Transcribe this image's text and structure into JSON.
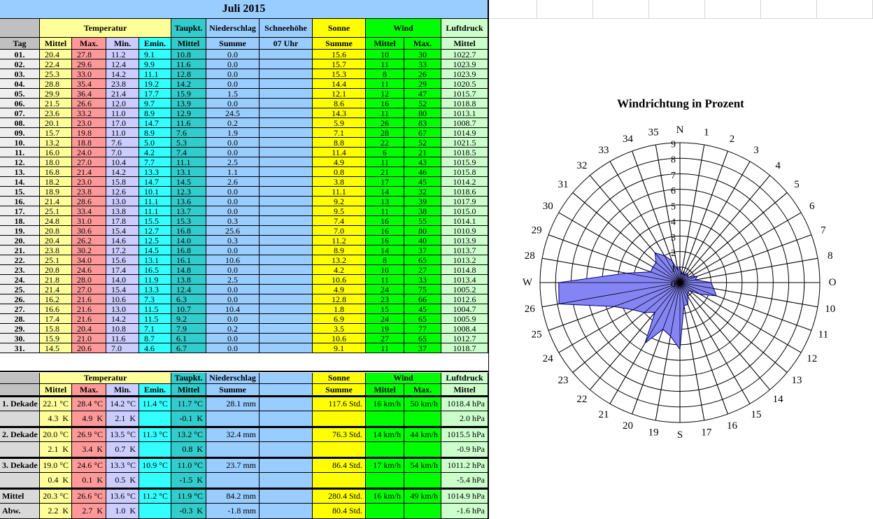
{
  "title": "Juli 2015",
  "table": {
    "group_headers": [
      "Temperatur",
      "Taupkt.",
      "Niederschlag",
      "Schneehöhe",
      "Sonne",
      "Wind",
      "Luftdruck"
    ],
    "sub_headers": [
      "Tag",
      "Mittel",
      "Max.",
      "Min.",
      "Emin.",
      "Mittel",
      "Summe",
      "07 Uhr",
      "Summe",
      "Mittel",
      "Max.",
      "Mittel"
    ],
    "rows": [
      [
        "01.",
        "20.4",
        "27.8",
        "11.2",
        "9.1",
        "10.8",
        "0.0",
        "15.6",
        "10",
        "30",
        "1022.7"
      ],
      [
        "02.",
        "22.4",
        "29.6",
        "12.4",
        "9.9",
        "11.6",
        "0.0",
        "15.7",
        "11",
        "33",
        "1023.9"
      ],
      [
        "03.",
        "25.3",
        "33.0",
        "14.2",
        "11.1",
        "12.8",
        "0.0",
        "15.3",
        "8",
        "26",
        "1023.9"
      ],
      [
        "04.",
        "28.8",
        "35.4",
        "23.8",
        "19.2",
        "14.2",
        "0.0",
        "14.4",
        "11",
        "29",
        "1020.5"
      ],
      [
        "05.",
        "29.9",
        "36.4",
        "21.4",
        "17.7",
        "15.9",
        "1.5",
        "12.1",
        "12",
        "47",
        "1015.7"
      ],
      [
        "06.",
        "21.5",
        "26.6",
        "12.0",
        "9.7",
        "13.9",
        "0.0",
        "8.6",
        "16",
        "52",
        "1018.8"
      ],
      [
        "07.",
        "23.6",
        "33.2",
        "11.0",
        "8.9",
        "12.9",
        "24.5",
        "14.3",
        "11",
        "80",
        "1013.1"
      ],
      [
        "08.",
        "20.1",
        "23.0",
        "17.0",
        "14.7",
        "11.6",
        "0.2",
        "5.9",
        "26",
        "83",
        "1008.7"
      ],
      [
        "09.",
        "15.7",
        "19.8",
        "11.0",
        "8.9",
        "7.6",
        "1.9",
        "7.1",
        "28",
        "67",
        "1014.9"
      ],
      [
        "10.",
        "13.2",
        "18.8",
        "7.6",
        "5.0",
        "5.3",
        "0.0",
        "8.8",
        "22",
        "52",
        "1021.5"
      ],
      [
        "11.",
        "16.0",
        "24.0",
        "7.0",
        "4.2",
        "7.4",
        "0.0",
        "11.4",
        "6",
        "21",
        "1018.5"
      ],
      [
        "12.",
        "18.0",
        "27.0",
        "10.4",
        "7.7",
        "11.1",
        "2.5",
        "4.9",
        "11",
        "43",
        "1015.9"
      ],
      [
        "13.",
        "16.8",
        "21.4",
        "14.2",
        "13.3",
        "13.1",
        "1.1",
        "0.8",
        "21",
        "46",
        "1015.8"
      ],
      [
        "14.",
        "18.2",
        "23.0",
        "15.8",
        "14.7",
        "14.5",
        "2.6",
        "3.8",
        "17",
        "45",
        "1014.2"
      ],
      [
        "15.",
        "18.9",
        "23.8",
        "12.6",
        "10.1",
        "12.3",
        "0.0",
        "11.1",
        "14",
        "32",
        "1018.6"
      ],
      [
        "16.",
        "21.4",
        "28.6",
        "13.0",
        "11.1",
        "13.6",
        "0.0",
        "9.2",
        "13",
        "39",
        "1017.9"
      ],
      [
        "17.",
        "25.1",
        "33.4",
        "13.8",
        "11.1",
        "13.7",
        "0.0",
        "9.5",
        "11",
        "38",
        "1015.0"
      ],
      [
        "18.",
        "24.8",
        "31.0",
        "17.8",
        "15.5",
        "15.3",
        "0.3",
        "7.4",
        "16",
        "55",
        "1014.1"
      ],
      [
        "19.",
        "20.8",
        "30.6",
        "15.4",
        "12.7",
        "16.8",
        "25.6",
        "7.0",
        "16",
        "80",
        "1010.9"
      ],
      [
        "20.",
        "20.4",
        "26.2",
        "14.6",
        "12.5",
        "14.0",
        "0.3",
        "11.2",
        "16",
        "40",
        "1013.9"
      ],
      [
        "21.",
        "23.8",
        "30.2",
        "17.2",
        "14.5",
        "16.8",
        "0.0",
        "8.9",
        "14",
        "37",
        "1013.7"
      ],
      [
        "22.",
        "25.1",
        "34.0",
        "15.6",
        "13.1",
        "16.1",
        "10.6",
        "13.2",
        "8",
        "65",
        "1013.2"
      ],
      [
        "23.",
        "20.8",
        "24.6",
        "17.4",
        "16.5",
        "14.8",
        "0.0",
        "4.2",
        "10",
        "27",
        "1014.8"
      ],
      [
        "24.",
        "21.8",
        "28.0",
        "14.0",
        "11.9",
        "13.8",
        "2.5",
        "10.6",
        "11",
        "33",
        "1013.4"
      ],
      [
        "25.",
        "21.4",
        "27.0",
        "15.4",
        "13.3",
        "12.4",
        "0.0",
        "4.9",
        "24",
        "75",
        "1005.2"
      ],
      [
        "26.",
        "16.2",
        "21.6",
        "10.6",
        "7.3",
        "6.3",
        "0.0",
        "12.8",
        "23",
        "66",
        "1012.6"
      ],
      [
        "27.",
        "16.6",
        "21.6",
        "13.0",
        "11.5",
        "10.7",
        "10.4",
        "1.8",
        "15",
        "45",
        "1004.7"
      ],
      [
        "28.",
        "17.4",
        "21.6",
        "14.2",
        "11.5",
        "9.2",
        "0.0",
        "6.9",
        "24",
        "65",
        "1005.9"
      ],
      [
        "29.",
        "15.8",
        "20.4",
        "10.8",
        "7.1",
        "7.9",
        "0.2",
        "3.5",
        "19",
        "77",
        "1008.4"
      ],
      [
        "30.",
        "15.9",
        "21.0",
        "11.6",
        "8.7",
        "6.1",
        "0.0",
        "10.6",
        "27",
        "65",
        "1012.7"
      ],
      [
        "31.",
        "14.5",
        "20.6",
        "7.0",
        "4.6",
        "6.7",
        "0.0",
        "9.1",
        "11",
        "37",
        "1018.7"
      ]
    ]
  },
  "summary": {
    "group_headers": [
      "Temperatur",
      "Taupkt.",
      "Niederschlag",
      "Sonne",
      "Wind",
      "Luftdruck"
    ],
    "sub_headers": [
      "Mittel",
      "Max.",
      "Min.",
      "Emin.",
      "Mittel",
      "Summe",
      "Summe",
      "Mittel",
      "Max.",
      "Mittel"
    ],
    "rows": [
      {
        "label": "1. Dekade",
        "t_mittel": "22.1 °C",
        "t_max": "28.4 °C",
        "t_min": "14.2 °C",
        "t_emin": "11.4 °C",
        "taupkt": "11.7 °C",
        "nieder": "28.1 mm",
        "sonne": "117.6 Std.",
        "wind_mittel": "16 km/h",
        "wind_max": "50 km/h",
        "luftdruck": "1018.4 hPa"
      },
      {
        "t_mittel": "4.3  K",
        "t_max": "4.9  K",
        "t_min": "2.1  K",
        "taupkt": "-0.1  K",
        "luftdruck": "2.0 hPa"
      },
      {
        "label": "2. Dekade",
        "t_mittel": "20.0 °C",
        "t_max": "26.9 °C",
        "t_min": "13.5 °C",
        "t_emin": "11.3 °C",
        "taupkt": "13.2 °C",
        "nieder": "32.4 mm",
        "sonne": "76.3 Std.",
        "wind_mittel": "14 km/h",
        "wind_max": "44 km/h",
        "luftdruck": "1015.5 hPa"
      },
      {
        "t_mittel": "2.1  K",
        "t_max": "3.4  K",
        "t_min": "0.7  K",
        "taupkt": "0.8  K",
        "luftdruck": "-0.9 hPa"
      },
      {
        "label": "3. Dekade",
        "t_mittel": "19.0 °C",
        "t_max": "24.6 °C",
        "t_min": "13.3 °C",
        "t_emin": "10.9 °C",
        "taupkt": "11.0 °C",
        "nieder": "23.7 mm",
        "sonne": "86.4 Std.",
        "wind_mittel": "17 km/h",
        "wind_max": "54 km/h",
        "luftdruck": "1011.2 hPa"
      },
      {
        "t_mittel": "0.4  K",
        "t_max": "0.1  K",
        "t_min": "0.5  K",
        "taupkt": "-1.5  K",
        "luftdruck": "-5.4 hPa"
      },
      {
        "label": "Mittel",
        "t_mittel": "20.3 °C",
        "t_max": "26.6 °C",
        "t_min": "13.6 °C",
        "t_emin": "11.2 °C",
        "taupkt": "11.9 °C",
        "nieder": "84.2 mm",
        "sonne": "280.4 Std.",
        "wind_mittel": "16 km/h",
        "wind_max": "49 km/h",
        "luftdruck": "1014.9 hPa"
      },
      {
        "label": "Abw.",
        "t_mittel": "2.2  K",
        "t_max": "2.7  K",
        "t_min": "1.0  K",
        "taupkt": "-0.3  K",
        "nieder": "-1.8 mm",
        "sonne": "80.4 Std.",
        "luftdruck": "-1.6 hPa"
      }
    ]
  },
  "chart_data": {
    "type": "radar",
    "title": "Windrichtung in Prozent",
    "directions": [
      "N",
      "1",
      "2",
      "3",
      "4",
      "5",
      "6",
      "7",
      "8",
      "O",
      "10",
      "11",
      "12",
      "13",
      "14",
      "15",
      "16",
      "17",
      "S",
      "19",
      "20",
      "21",
      "22",
      "23",
      "24",
      "25",
      "26",
      "W",
      "28",
      "29",
      "30",
      "31",
      "32",
      "33",
      "34",
      "35"
    ],
    "values": [
      1.0,
      0.5,
      0.8,
      0.5,
      0.8,
      0.6,
      0.7,
      1.2,
      1.0,
      2.0,
      2.2,
      2.5,
      1.5,
      0.8,
      0.8,
      1.0,
      1.5,
      1.5,
      4.3,
      3.5,
      3.2,
      4.5,
      2.5,
      3.0,
      3.5,
      4.5,
      7.9,
      7.8,
      3.5,
      2.0,
      2.0,
      2.0,
      2.5,
      2.0,
      1.5,
      0.8
    ],
    "color": "#8484f4",
    "rlim": [
      0,
      9
    ],
    "rticks": [
      0,
      1,
      2,
      3,
      4,
      5,
      6,
      7,
      8,
      9
    ]
  }
}
